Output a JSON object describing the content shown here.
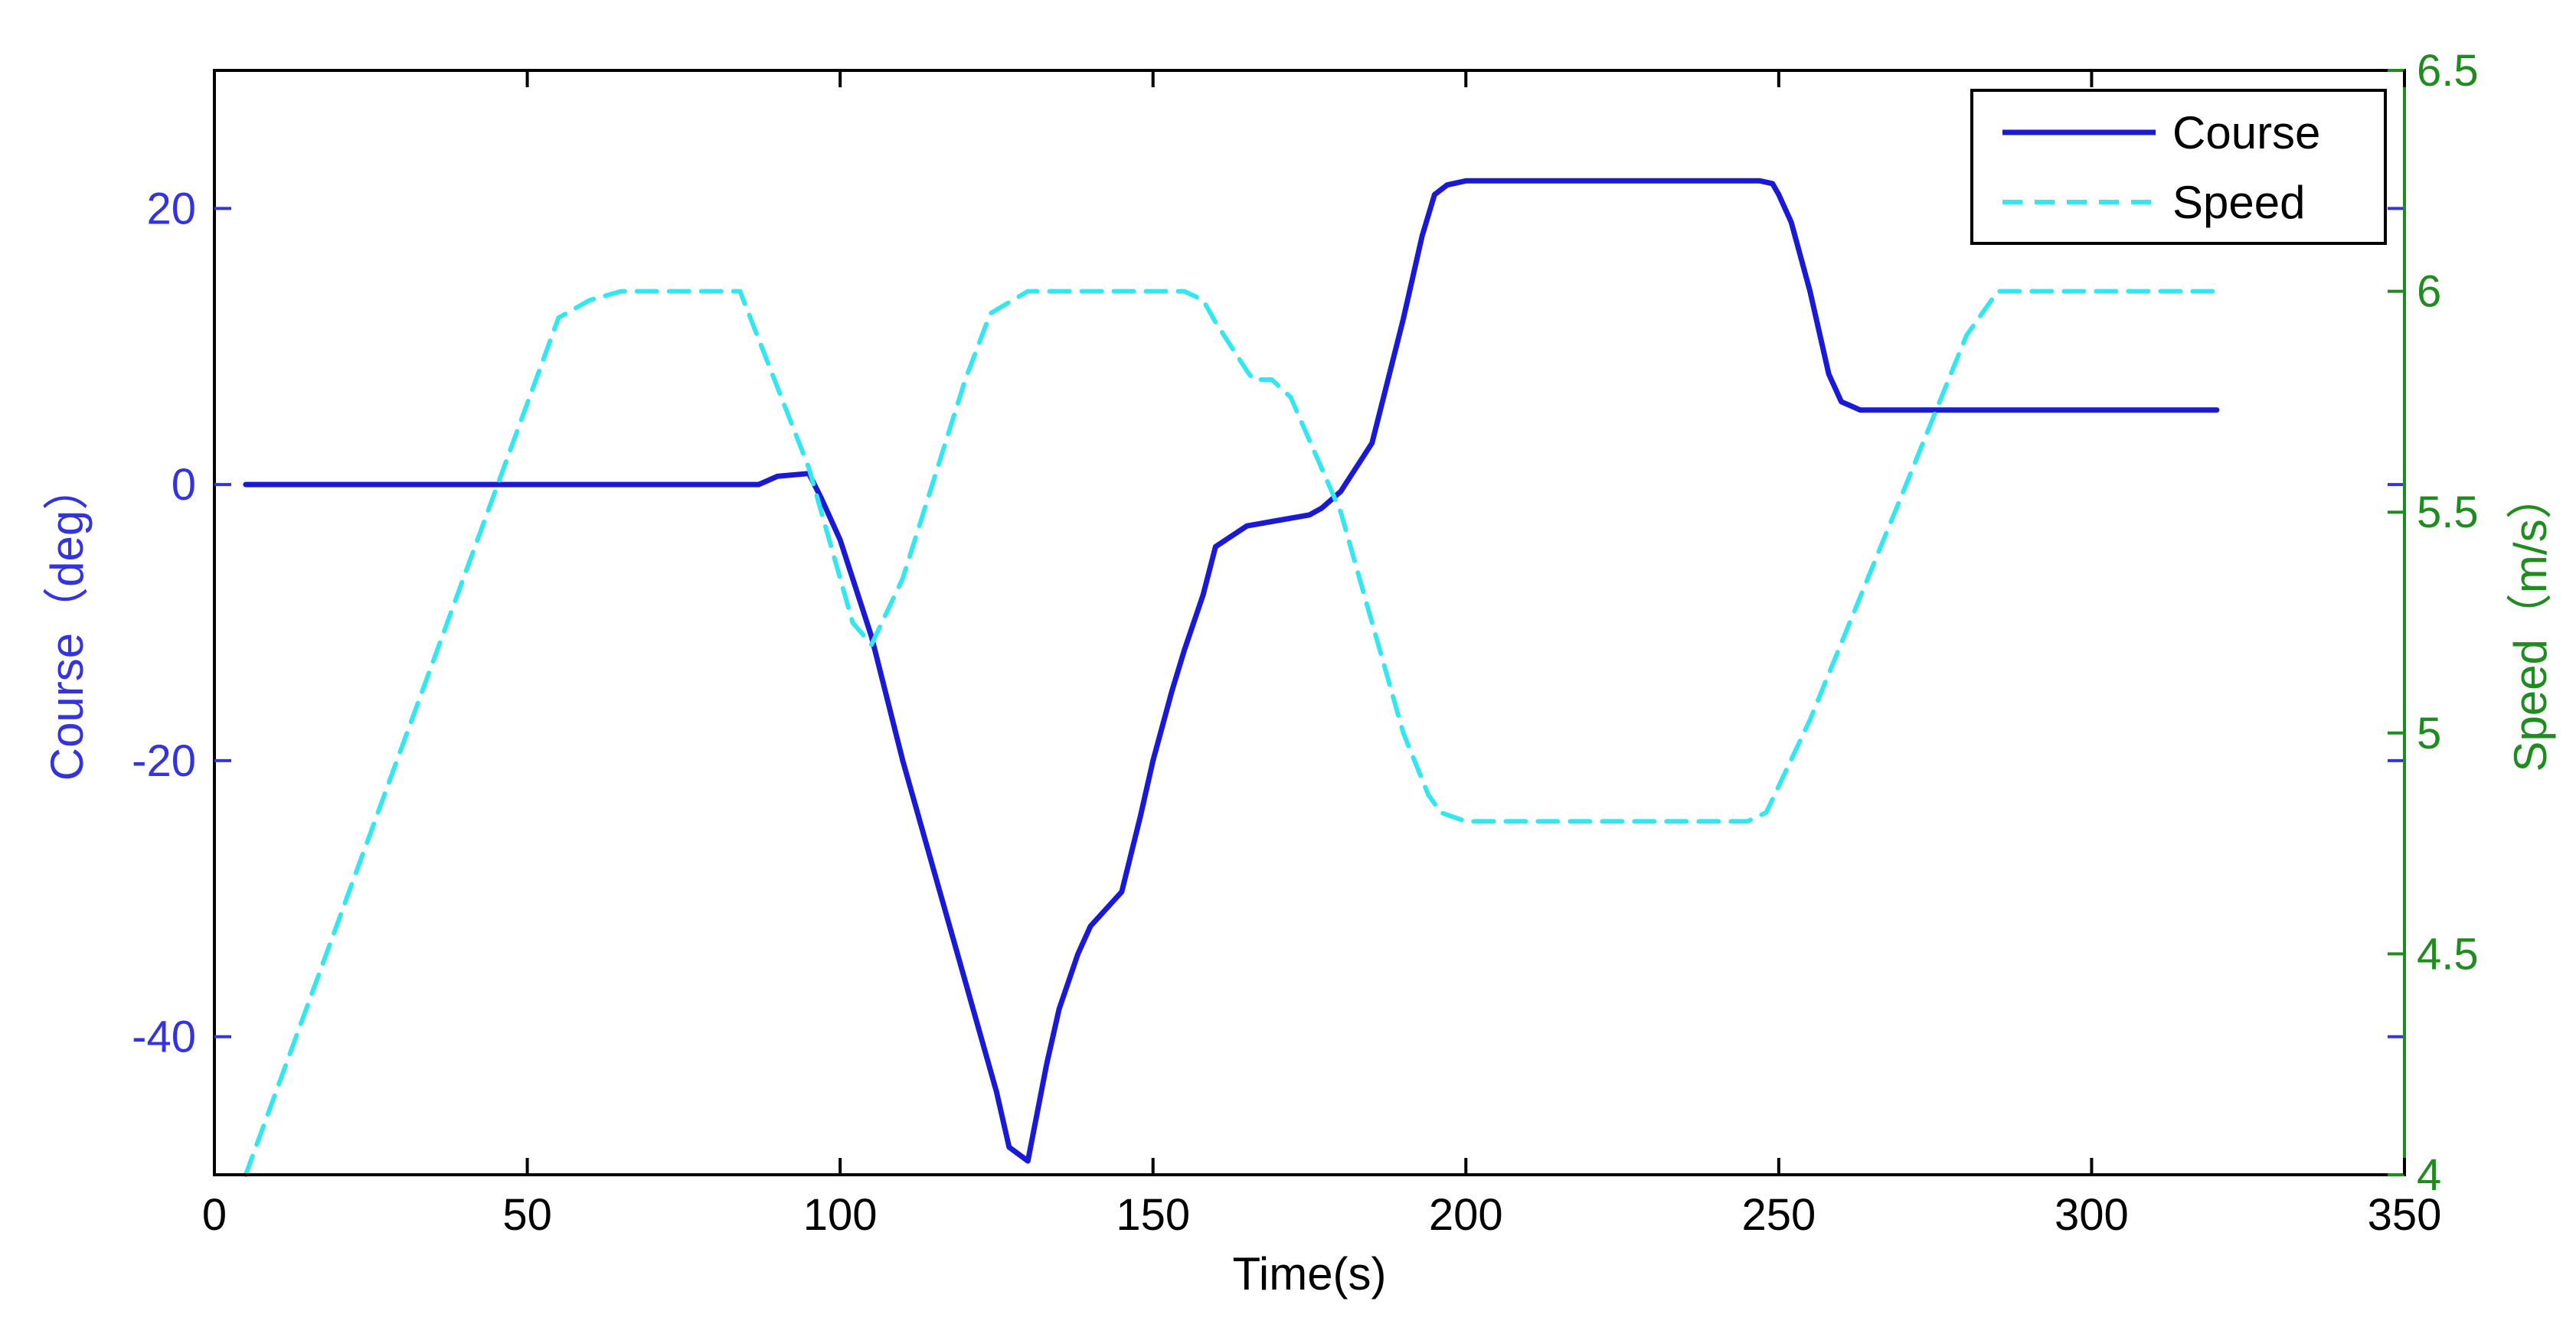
{
  "chart_data": {
    "type": "line",
    "title": "",
    "xlabel": "Time(s)",
    "ylabel_left": "Course（deg）",
    "ylabel_right": "Speed（m/s）",
    "xlim": [
      0,
      350
    ],
    "ylim_left": [
      -50,
      30
    ],
    "ylim_right": [
      4,
      6.5
    ],
    "x_ticks": [
      0,
      50,
      100,
      150,
      200,
      250,
      300,
      350
    ],
    "x_tick_labels": [
      "0",
      "50",
      "100",
      "150",
      "200",
      "250",
      "300",
      "350"
    ],
    "y_left_ticks": [
      20,
      0,
      -20,
      -40
    ],
    "y_left_tick_labels": [
      "20",
      "0",
      "-20",
      "-40"
    ],
    "y_right_ticks": [
      6.5,
      6,
      5.5,
      5,
      4.5,
      4
    ],
    "y_right_tick_labels": [
      "6.5",
      "6",
      "5.5",
      "5",
      "4.5",
      "4"
    ],
    "grid": false,
    "legend_position": "top-right",
    "colors": {
      "course": "#1a1ad6",
      "speed": "#33e6f0",
      "left_axis": "#3333e0",
      "right_axis": "#1f8c1f",
      "frame": "#000000"
    },
    "series": [
      {
        "name": "Course",
        "axis": "left",
        "style": "solid",
        "x": [
          5,
          20,
          40,
          60,
          80,
          87,
          90,
          95,
          97,
          100,
          105,
          110,
          115,
          120,
          125,
          127,
          130,
          133,
          135,
          138,
          140,
          145,
          148,
          150,
          153,
          155,
          158,
          160,
          165,
          170,
          175,
          177,
          180,
          185,
          190,
          193,
          195,
          197,
          200,
          205,
          210,
          220,
          230,
          240,
          247,
          249,
          250,
          252,
          255,
          258,
          260,
          263,
          270,
          280,
          300,
          320
        ],
        "y": [
          0,
          0,
          0,
          0,
          0,
          0,
          0.6,
          0.8,
          -1,
          -4,
          -11,
          -20,
          -28,
          -36,
          -44,
          -48,
          -49,
          -42,
          -38,
          -34,
          -32,
          -29.5,
          -24,
          -20,
          -15,
          -12,
          -8,
          -4.5,
          -3,
          -2.6,
          -2.2,
          -1.7,
          -0.5,
          3,
          12,
          18,
          21,
          21.7,
          22,
          22,
          22,
          22,
          22,
          22,
          22,
          21.8,
          21,
          19,
          14,
          8,
          6,
          5.4,
          5.4,
          5.4,
          5.4,
          5.4
        ]
      },
      {
        "name": "Speed",
        "axis": "right",
        "style": "dashed",
        "x": [
          5,
          55,
          60,
          65,
          80,
          84,
          95,
          102,
          105,
          110,
          120,
          124,
          130,
          150,
          155,
          158,
          160,
          165,
          166,
          169,
          172,
          180,
          190,
          194,
          196,
          200,
          210,
          230,
          245,
          248,
          255,
          270,
          280,
          285,
          300,
          320
        ],
        "y": [
          4,
          5.94,
          5.98,
          6,
          6,
          6,
          5.6,
          5.25,
          5.2,
          5.35,
          5.8,
          5.95,
          6,
          6,
          6,
          5.98,
          5.93,
          5.82,
          5.8,
          5.8,
          5.76,
          5.5,
          5.0,
          4.86,
          4.82,
          4.8,
          4.8,
          4.8,
          4.8,
          4.82,
          5.03,
          5.55,
          5.9,
          6,
          6,
          6
        ]
      }
    ]
  }
}
